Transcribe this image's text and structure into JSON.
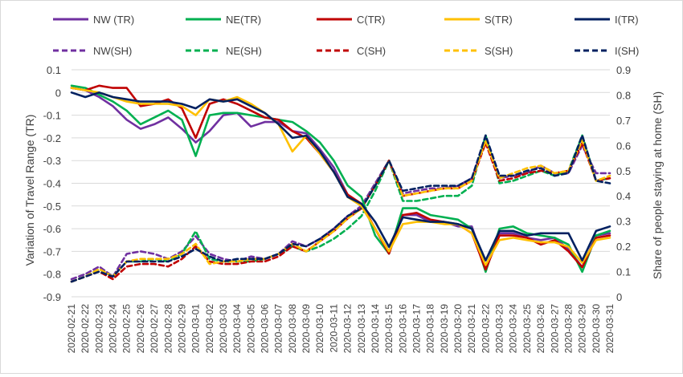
{
  "chart_data": {
    "type": "line",
    "title": "",
    "xlabel": "",
    "ylabel_left": "Variation of Travel Range (TR)",
    "ylabel_right": "Share of people staying at home (SH)",
    "ylim_left": [
      -0.9,
      0.1
    ],
    "ylim_right": [
      0,
      0.9
    ],
    "yticks_left": [
      "0.1",
      "0",
      "-0.1",
      "-0.2",
      "-0.3",
      "-0.4",
      "-0.5",
      "-0.6",
      "-0.7",
      "-0.8",
      "-0.9"
    ],
    "yticks_right": [
      "0.9",
      "0.8",
      "0.7",
      "0.6",
      "0.5",
      "0.4",
      "0.3",
      "0.2",
      "0.1",
      "0"
    ],
    "grid": true,
    "legend_position": "top",
    "x": [
      "2020-02-21",
      "2020-02-22",
      "2020-02-23",
      "2020-02-24",
      "2020-02-25",
      "2020-02-26",
      "2020-02-27",
      "2020-02-28",
      "2020-02-29",
      "2020-03-01",
      "2020-03-02",
      "2020-03-03",
      "2020-03-04",
      "2020-03-05",
      "2020-03-06",
      "2020-03-07",
      "2020-03-08",
      "2020-03-09",
      "2020-03-10",
      "2020-03-11",
      "2020-03-12",
      "2020-03-13",
      "2020-03-14",
      "2020-03-15",
      "2020-03-16",
      "2020-03-17",
      "2020-03-18",
      "2020-03-19",
      "2020-03-20",
      "2020-03-21",
      "2020-03-22",
      "2020-03-23",
      "2020-03-24",
      "2020-03-25",
      "2020-03-26",
      "2020-03-27",
      "2020-03-28",
      "2020-03-29",
      "2020-03-30",
      "2020-03-31"
    ],
    "series": [
      {
        "name": "NW (TR)",
        "axis": "left",
        "style": "solid",
        "color": "#7030a0",
        "values": [
          0.02,
          0.01,
          -0.02,
          -0.06,
          -0.12,
          -0.16,
          -0.14,
          -0.11,
          -0.16,
          -0.22,
          -0.17,
          -0.1,
          -0.09,
          -0.15,
          -0.13,
          -0.13,
          -0.17,
          -0.18,
          -0.25,
          -0.33,
          -0.45,
          -0.5,
          -0.6,
          -0.7,
          -0.54,
          -0.54,
          -0.57,
          -0.57,
          -0.59,
          -0.59,
          -0.77,
          -0.62,
          -0.62,
          -0.64,
          -0.65,
          -0.64,
          -0.69,
          -0.77,
          -0.63,
          -0.62
        ]
      },
      {
        "name": "NE(TR)",
        "axis": "left",
        "style": "solid",
        "color": "#00b050",
        "values": [
          0.03,
          0.02,
          -0.01,
          -0.04,
          -0.08,
          -0.14,
          -0.11,
          -0.08,
          -0.12,
          -0.28,
          -0.1,
          -0.09,
          -0.09,
          -0.1,
          -0.11,
          -0.12,
          -0.13,
          -0.17,
          -0.22,
          -0.3,
          -0.41,
          -0.46,
          -0.63,
          -0.71,
          -0.51,
          -0.51,
          -0.54,
          -0.55,
          -0.56,
          -0.6,
          -0.79,
          -0.6,
          -0.59,
          -0.62,
          -0.63,
          -0.64,
          -0.67,
          -0.79,
          -0.63,
          -0.61
        ]
      },
      {
        "name": "C(TR)",
        "axis": "left",
        "style": "solid",
        "color": "#c00000",
        "values": [
          0.02,
          0.01,
          0.03,
          0.02,
          0.02,
          -0.06,
          -0.05,
          -0.03,
          -0.07,
          -0.2,
          -0.05,
          -0.03,
          -0.05,
          -0.08,
          -0.11,
          -0.12,
          -0.17,
          -0.2,
          -0.27,
          -0.35,
          -0.45,
          -0.49,
          -0.6,
          -0.71,
          -0.54,
          -0.53,
          -0.56,
          -0.57,
          -0.58,
          -0.62,
          -0.78,
          -0.63,
          -0.63,
          -0.64,
          -0.67,
          -0.65,
          -0.7,
          -0.77,
          -0.64,
          -0.63
        ]
      },
      {
        "name": "S(TR)",
        "axis": "left",
        "style": "solid",
        "color": "#ffc000",
        "values": [
          0.02,
          0.01,
          0.0,
          -0.02,
          -0.04,
          -0.05,
          -0.05,
          -0.05,
          -0.06,
          -0.1,
          -0.03,
          -0.04,
          -0.02,
          -0.05,
          -0.09,
          -0.14,
          -0.26,
          -0.19,
          -0.27,
          -0.35,
          -0.46,
          -0.5,
          -0.6,
          -0.7,
          -0.58,
          -0.57,
          -0.57,
          -0.58,
          -0.58,
          -0.62,
          -0.76,
          -0.65,
          -0.64,
          -0.65,
          -0.66,
          -0.66,
          -0.68,
          -0.75,
          -0.65,
          -0.64
        ]
      },
      {
        "name": "I(TR)",
        "axis": "left",
        "style": "solid",
        "color": "#002060",
        "values": [
          0.0,
          -0.02,
          0.0,
          -0.02,
          -0.03,
          -0.04,
          -0.04,
          -0.04,
          -0.05,
          -0.07,
          -0.03,
          -0.04,
          -0.03,
          -0.06,
          -0.09,
          -0.14,
          -0.2,
          -0.19,
          -0.26,
          -0.35,
          -0.46,
          -0.49,
          -0.57,
          -0.68,
          -0.55,
          -0.56,
          -0.57,
          -0.57,
          -0.58,
          -0.6,
          -0.74,
          -0.61,
          -0.61,
          -0.63,
          -0.62,
          -0.62,
          -0.62,
          -0.74,
          -0.61,
          -0.59
        ]
      },
      {
        "name": "NW(SH)",
        "axis": "right",
        "style": "dashed",
        "color": "#7030a0",
        "values": [
          0.07,
          0.09,
          0.12,
          0.08,
          0.17,
          0.18,
          0.17,
          0.15,
          0.18,
          0.24,
          0.17,
          0.15,
          0.14,
          0.16,
          0.15,
          0.17,
          0.22,
          0.2,
          0.23,
          0.27,
          0.32,
          0.36,
          0.45,
          0.54,
          0.41,
          0.42,
          0.43,
          0.43,
          0.44,
          0.47,
          0.62,
          0.47,
          0.48,
          0.49,
          0.52,
          0.49,
          0.49,
          0.6,
          0.49,
          0.49
        ]
      },
      {
        "name": "NE(SH)",
        "axis": "right",
        "style": "dashed",
        "color": "#00b050",
        "values": [
          0.06,
          0.08,
          0.11,
          0.08,
          0.14,
          0.14,
          0.15,
          0.14,
          0.17,
          0.26,
          0.15,
          0.14,
          0.14,
          0.14,
          0.15,
          0.17,
          0.2,
          0.18,
          0.2,
          0.23,
          0.27,
          0.32,
          0.42,
          0.54,
          0.38,
          0.38,
          0.39,
          0.4,
          0.4,
          0.44,
          0.64,
          0.45,
          0.46,
          0.48,
          0.5,
          0.48,
          0.5,
          0.64,
          0.46,
          0.47
        ]
      },
      {
        "name": "C(SH)",
        "axis": "right",
        "style": "dashed",
        "color": "#c00000",
        "values": [
          0.06,
          0.08,
          0.1,
          0.07,
          0.12,
          0.13,
          0.13,
          0.12,
          0.15,
          0.2,
          0.14,
          0.13,
          0.13,
          0.14,
          0.14,
          0.16,
          0.2,
          0.18,
          0.22,
          0.26,
          0.31,
          0.35,
          0.44,
          0.54,
          0.4,
          0.41,
          0.42,
          0.43,
          0.43,
          0.46,
          0.61,
          0.46,
          0.47,
          0.49,
          0.5,
          0.49,
          0.5,
          0.61,
          0.46,
          0.47
        ]
      },
      {
        "name": "S(SH)",
        "axis": "right",
        "style": "dashed",
        "color": "#ffc000",
        "values": [
          0.06,
          0.08,
          0.11,
          0.08,
          0.14,
          0.15,
          0.15,
          0.15,
          0.17,
          0.21,
          0.13,
          0.14,
          0.14,
          0.15,
          0.15,
          0.17,
          0.21,
          0.18,
          0.22,
          0.26,
          0.31,
          0.35,
          0.44,
          0.54,
          0.4,
          0.41,
          0.42,
          0.43,
          0.43,
          0.46,
          0.62,
          0.47,
          0.49,
          0.51,
          0.52,
          0.49,
          0.5,
          0.62,
          0.46,
          0.48
        ]
      },
      {
        "name": "I(SH)",
        "axis": "right",
        "style": "dashed",
        "color": "#002060",
        "values": [
          0.06,
          0.08,
          0.1,
          0.08,
          0.14,
          0.14,
          0.14,
          0.14,
          0.16,
          0.19,
          0.16,
          0.14,
          0.15,
          0.15,
          0.15,
          0.17,
          0.21,
          0.2,
          0.23,
          0.27,
          0.32,
          0.35,
          0.44,
          0.54,
          0.42,
          0.43,
          0.44,
          0.44,
          0.44,
          0.47,
          0.64,
          0.48,
          0.48,
          0.5,
          0.51,
          0.48,
          0.49,
          0.64,
          0.46,
          0.45
        ]
      }
    ]
  }
}
